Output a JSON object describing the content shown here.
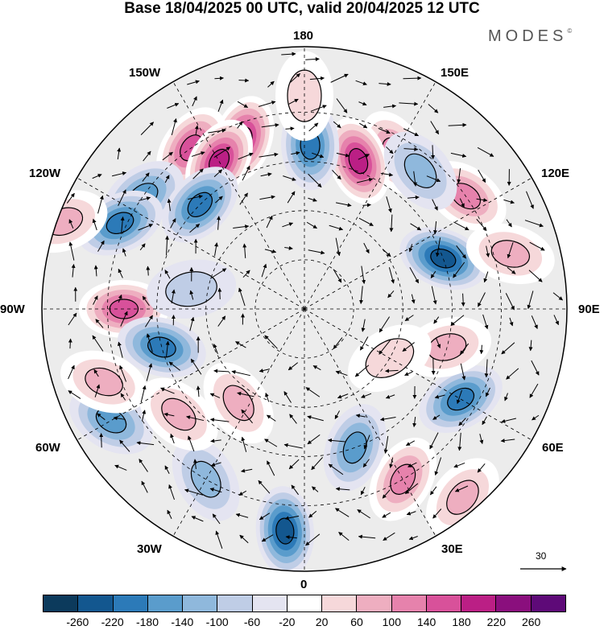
{
  "title": "Base 18/04/2025 00 UTC, valid 20/04/2025 12 UTC",
  "brand": {
    "name": "MODES",
    "mark": "©"
  },
  "longitude_labels": {
    "top": "180",
    "bottom": "0",
    "left": "90W",
    "right": "90E",
    "upper_left_1": "150W",
    "upper_left_2": "120W",
    "upper_right_1": "150E",
    "upper_right_2": "120E",
    "lower_left_1": "60W",
    "lower_left_2": "30W",
    "lower_right_1": "60E",
    "lower_right_2": "30E"
  },
  "vector_reference": {
    "value": "30"
  },
  "colorbar": {
    "colors": [
      "#0c3a5c",
      "#13578f",
      "#2c7ab8",
      "#5a9ccc",
      "#8fb8dc",
      "#bfcde6",
      "#e4e4f1",
      "#ffffff",
      "#f6d8da",
      "#eeaec0",
      "#e682ac",
      "#d8519a",
      "#bb1f85",
      "#8a0f7d",
      "#5e0a78"
    ],
    "tick_labels": [
      "-260",
      "-220",
      "-180",
      "-140",
      "-100",
      "-60",
      "-20",
      "20",
      "60",
      "100",
      "140",
      "180",
      "220",
      "260"
    ]
  },
  "map": {
    "background": "#ececec",
    "anomaly_features": [
      {
        "lon": 150,
        "lat": 35,
        "value": 130
      },
      {
        "lon": 160,
        "lat": 42,
        "value": 190
      },
      {
        "lon": 178,
        "lat": 40,
        "value": -170
      },
      {
        "lon": 200,
        "lat": 35,
        "value": 200
      },
      {
        "lon": 215,
        "lat": 30,
        "value": 160
      },
      {
        "lon": 210,
        "lat": 38,
        "value": 180
      },
      {
        "lon": 235,
        "lat": 30,
        "value": -110
      },
      {
        "lon": 245,
        "lat": 28,
        "value": -150
      },
      {
        "lon": 225,
        "lat": 45,
        "value": -160
      },
      {
        "lon": 270,
        "lat": 35,
        "value": 160
      },
      {
        "lon": 285,
        "lat": 45,
        "value": -170
      },
      {
        "lon": 300,
        "lat": 22,
        "value": -130
      },
      {
        "lon": 290,
        "lat": 25,
        "value": 60
      },
      {
        "lon": 325,
        "lat": 55,
        "value": 90
      },
      {
        "lon": 355,
        "lat": 22,
        "value": -200
      },
      {
        "lon": 30,
        "lat": 30,
        "value": 120
      },
      {
        "lon": 20,
        "lat": 45,
        "value": -120
      },
      {
        "lon": 60,
        "lat": 35,
        "value": -150
      },
      {
        "lon": 75,
        "lat": 45,
        "value": 90
      },
      {
        "lon": 110,
        "lat": 45,
        "value": -200
      },
      {
        "lon": 105,
        "lat": 25,
        "value": 60
      },
      {
        "lon": 125,
        "lat": 30,
        "value": 130
      },
      {
        "lon": 140,
        "lat": 35,
        "value": -80
      },
      {
        "lon": 180,
        "lat": 25,
        "value": 40
      },
      {
        "lon": 330,
        "lat": 30,
        "value": -60
      },
      {
        "lon": 260,
        "lat": 55,
        "value": -50
      },
      {
        "lon": 60,
        "lat": 60,
        "value": 50
      },
      {
        "lon": 40,
        "lat": 15,
        "value": 70
      },
      {
        "lon": 250,
        "lat": 12,
        "value": 60
      },
      {
        "lon": 310,
        "lat": 40,
        "value": 70
      }
    ]
  }
}
